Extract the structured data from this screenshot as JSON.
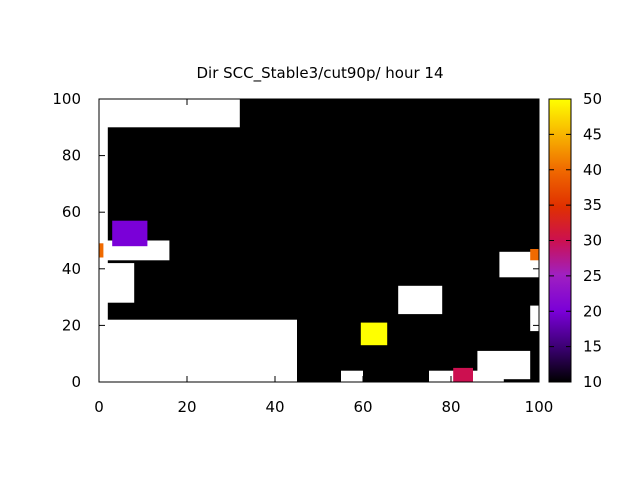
{
  "chart_data": {
    "type": "heatmap",
    "title": "Dir SCC_Stable3/cut90p/ hour 14",
    "xlabel": "",
    "ylabel": "",
    "xlim": [
      0,
      100
    ],
    "ylim": [
      0,
      100
    ],
    "x_ticks": [
      "0",
      "20",
      "40",
      "60",
      "80",
      "100"
    ],
    "y_ticks": [
      "0",
      "20",
      "40",
      "60",
      "80",
      "100"
    ],
    "colorbar": {
      "range": [
        10,
        50
      ],
      "ticks": [
        "10",
        "15",
        "20",
        "25",
        "30",
        "35",
        "40",
        "45",
        "50"
      ]
    },
    "colors": {
      "background": "#000000",
      "no_data": "#ffffff",
      "palette": [
        "#000000",
        "#3a0070",
        "#7a00d8",
        "#a020c0",
        "#cc1050",
        "#e03000",
        "#f06a00",
        "#f8b800",
        "#ffff00"
      ]
    },
    "regions": [
      {
        "kind": "no_data",
        "x": [
          1,
          32
        ],
        "y": [
          90,
          100
        ]
      },
      {
        "kind": "no_data",
        "x": [
          0,
          2
        ],
        "y": [
          0,
          100
        ]
      },
      {
        "kind": "no_data",
        "x": [
          1,
          16
        ],
        "y": [
          43,
          50
        ]
      },
      {
        "kind": "no_data",
        "x": [
          1,
          8
        ],
        "y": [
          28,
          42
        ]
      },
      {
        "kind": "no_data",
        "x": [
          1,
          45
        ],
        "y": [
          0,
          22
        ]
      },
      {
        "kind": "no_data",
        "x": [
          68,
          78
        ],
        "y": [
          24,
          34
        ]
      },
      {
        "kind": "no_data",
        "x": [
          75,
          92
        ],
        "y": [
          0,
          4
        ]
      },
      {
        "kind": "no_data",
        "x": [
          86,
          98
        ],
        "y": [
          1,
          11
        ]
      },
      {
        "kind": "no_data",
        "x": [
          91,
          100
        ],
        "y": [
          37,
          46
        ]
      },
      {
        "kind": "no_data",
        "x": [
          98,
          100
        ],
        "y": [
          18,
          27
        ]
      },
      {
        "kind": "no_data",
        "x": [
          55,
          60
        ],
        "y": [
          0,
          4
        ]
      },
      {
        "kind": "value",
        "x": [
          3,
          11
        ],
        "y": [
          48,
          57
        ],
        "value": 21
      },
      {
        "kind": "value",
        "x": [
          59.5,
          65.5
        ],
        "y": [
          13,
          21
        ],
        "value": 50
      },
      {
        "kind": "value",
        "x": [
          80.5,
          85
        ],
        "y": [
          0,
          5
        ],
        "value": 32
      },
      {
        "kind": "value",
        "x": [
          0,
          1
        ],
        "y": [
          44,
          49
        ],
        "value": 38
      },
      {
        "kind": "value",
        "x": [
          98,
          100
        ],
        "y": [
          43,
          47
        ],
        "value": 38
      }
    ]
  }
}
